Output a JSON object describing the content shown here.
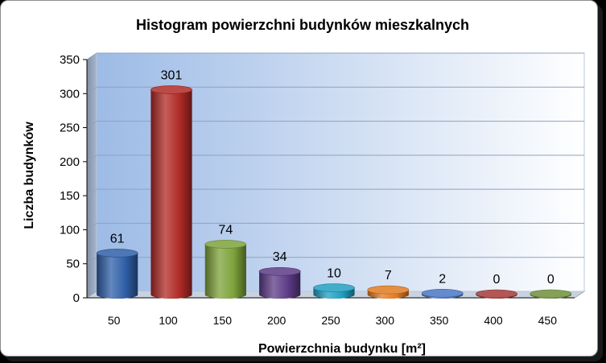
{
  "chart_data": {
    "type": "bar",
    "title": "Histogram powierzchni budynków mieszkalnych",
    "xlabel": "Powierzchnia budynku [m²]",
    "ylabel": "Liczba budynków",
    "categories": [
      "50",
      "100",
      "150",
      "200",
      "250",
      "300",
      "350",
      "400",
      "450"
    ],
    "values": [
      61,
      301,
      74,
      34,
      10,
      7,
      2,
      0,
      0
    ],
    "data_labels": [
      "61",
      "301",
      "74",
      "34",
      "10",
      "7",
      "2",
      "0",
      "0"
    ],
    "ylim": [
      0,
      350
    ],
    "yticks": [
      0,
      50,
      100,
      150,
      200,
      250,
      300,
      350
    ],
    "ytick_labels": [
      "0",
      "50",
      "100",
      "150",
      "200",
      "250",
      "300",
      "350"
    ],
    "grid": true,
    "legend": "none",
    "bar_style": "3d-cylinder",
    "colors": [
      "#2f5fa8",
      "#b02a26",
      "#7ea23a",
      "#5d3b86",
      "#1f9fc0",
      "#e07b22",
      "#4a77c4",
      "#a33a38",
      "#6f8f3a"
    ],
    "plot_background": [
      "#9dbbe6",
      "#ffffff"
    ]
  }
}
